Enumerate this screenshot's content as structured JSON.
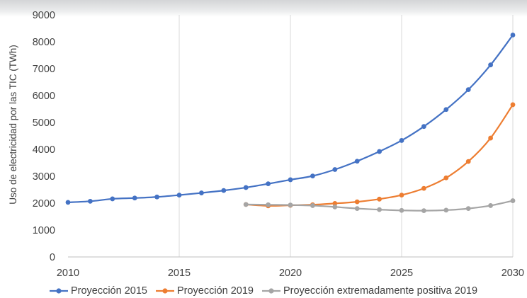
{
  "chart_data": {
    "type": "line",
    "ylabel": "Uso de electricidad por las TIC (TWh)",
    "xlabel": "",
    "xlim": [
      2010,
      2030
    ],
    "ylim": [
      0,
      9000
    ],
    "xticks": [
      2010,
      2015,
      2020,
      2025,
      2030
    ],
    "yticks": [
      0,
      1000,
      2000,
      3000,
      4000,
      5000,
      6000,
      7000,
      8000,
      9000
    ],
    "grid": "vertical",
    "legend_position": "bottom",
    "series": [
      {
        "name": "Proyección 2015",
        "color": "#4472c4",
        "x": [
          2010,
          2011,
          2012,
          2013,
          2014,
          2015,
          2016,
          2017,
          2018,
          2019,
          2020,
          2021,
          2022,
          2023,
          2024,
          2025,
          2026,
          2027,
          2028,
          2029,
          2030
        ],
        "values": [
          2030,
          2070,
          2160,
          2190,
          2230,
          2300,
          2380,
          2470,
          2580,
          2720,
          2870,
          3010,
          3250,
          3560,
          3920,
          4330,
          4850,
          5480,
          6220,
          7140,
          8250
        ]
      },
      {
        "name": "Proyección 2019",
        "color": "#ed7d31",
        "x": [
          2018,
          2019,
          2020,
          2021,
          2022,
          2023,
          2024,
          2025,
          2026,
          2027,
          2028,
          2029,
          2030
        ],
        "values": [
          1950,
          1900,
          1920,
          1940,
          1990,
          2050,
          2150,
          2300,
          2550,
          2940,
          3550,
          4420,
          5660
        ]
      },
      {
        "name": "Proyección extremadamente positiva 2019",
        "color": "#a5a5a5",
        "x": [
          2018,
          2019,
          2020,
          2021,
          2022,
          2023,
          2024,
          2025,
          2026,
          2027,
          2028,
          2029,
          2030
        ],
        "values": [
          1950,
          1940,
          1930,
          1910,
          1860,
          1800,
          1760,
          1730,
          1720,
          1740,
          1800,
          1910,
          2090
        ]
      }
    ]
  }
}
